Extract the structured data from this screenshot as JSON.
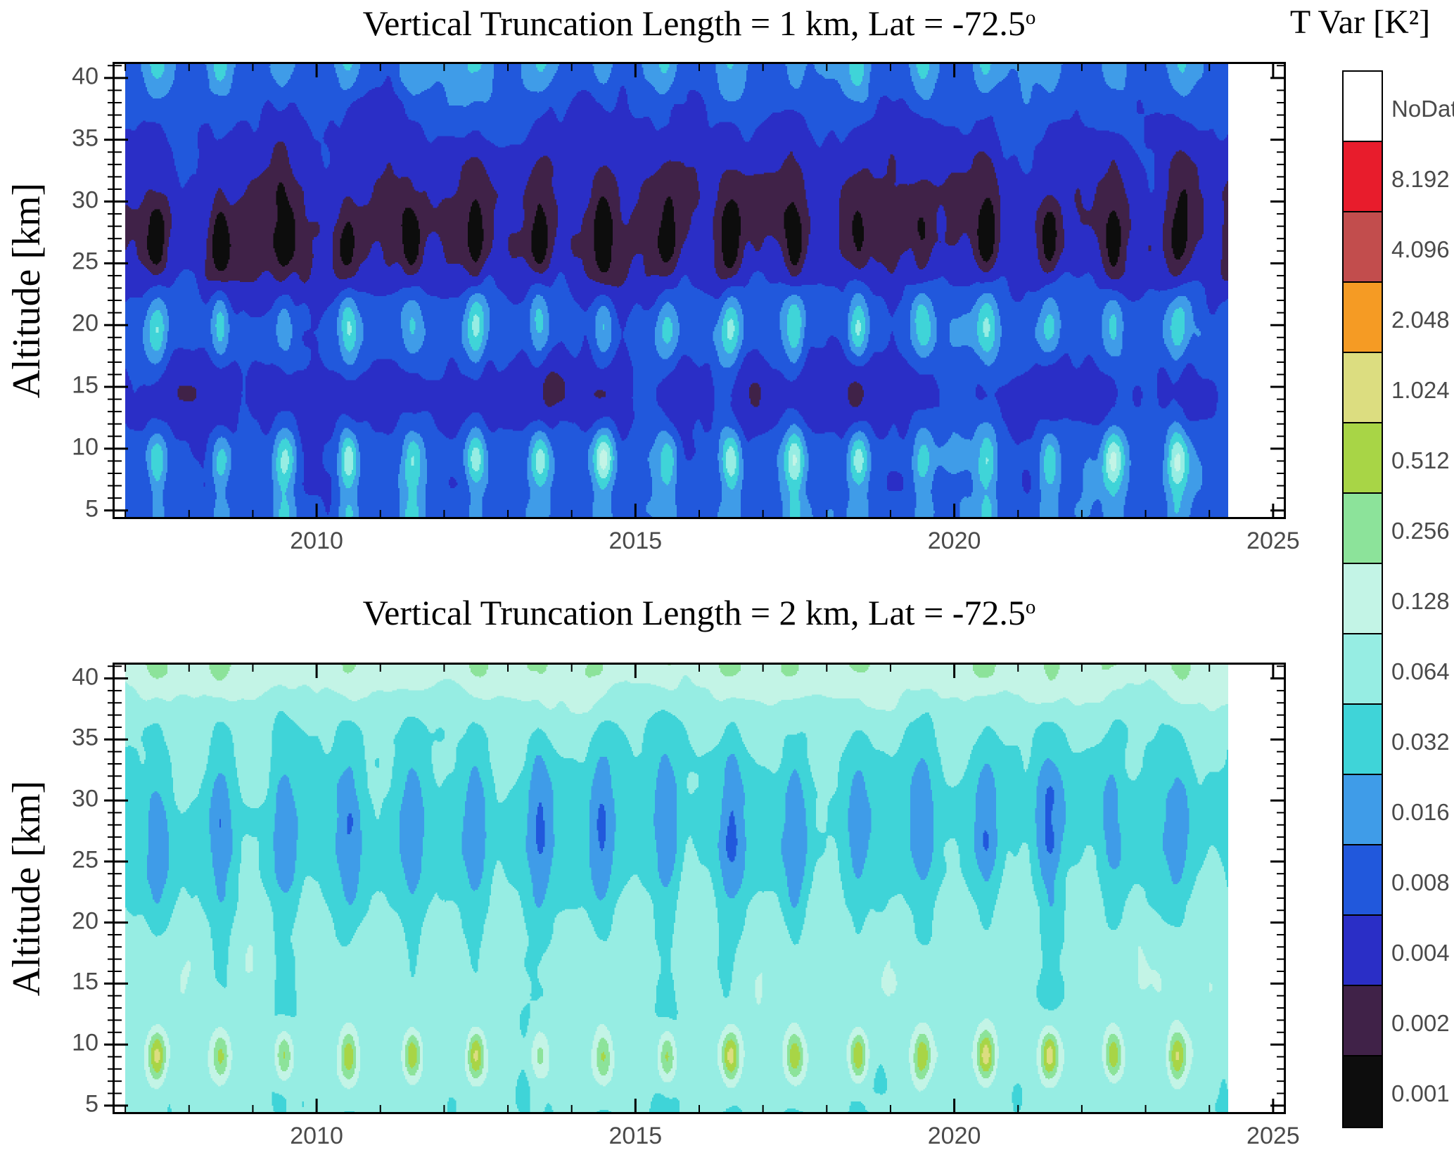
{
  "colorbar": {
    "title": "T Var [K²]",
    "labels": [
      "NoDat",
      "8.192",
      "4.096",
      "2.048",
      "1.024",
      "0.512",
      "0.256",
      "0.128",
      "0.064",
      "0.032",
      "0.016",
      "0.008",
      "0.004",
      "0.002",
      "0.001"
    ],
    "no_data_color": "#ffffff"
  },
  "chart_data": [
    {
      "type": "heatmap",
      "title": "Vertical Truncation Length = 1 km, Lat = -72.5",
      "title_sup": "o",
      "ylabel": "Altitude [km]",
      "x_tick_labels": [
        "2010",
        "2015",
        "2020",
        "2025"
      ],
      "x_tick_years": [
        2010,
        2015,
        2020,
        2025
      ],
      "x_minor_tick_every_years": 1,
      "y_tick_labels": [
        "5",
        "10",
        "15",
        "20",
        "25",
        "30",
        "35",
        "40"
      ],
      "y_tick_values": [
        5,
        10,
        15,
        20,
        25,
        30,
        35,
        40
      ],
      "y_minor_tick_every_km": 1,
      "x_range": [
        2006.8,
        2025.2
      ],
      "y_range": [
        4.3,
        41.3
      ],
      "data_span_years": [
        2007.0,
        2024.3
      ],
      "contour_levels_K2": [
        0.001,
        0.002,
        0.004,
        0.008,
        0.016,
        0.032,
        0.064,
        0.128,
        0.256,
        0.512,
        1.024,
        2.048,
        4.096,
        8.192
      ],
      "palette_low_to_high": [
        "#0d0d0d",
        "#402248",
        "#2a2ec6",
        "#2158dc",
        "#3f9ce8",
        "#3fd4d8",
        "#96ede3",
        "#c3f4e6",
        "#8ce39a",
        "#a8d546",
        "#dcdd80",
        "#f59b24",
        "#c24d4d",
        "#e81c2c"
      ],
      "summary": "Temperature variance vs time (2007-2024) and altitude (5-40 km), 1 km vertical truncation. Background ~0.008 K²; persistent low-variance layer ~23-33 km dropping to 0.002 K² (0.001 K² cores) each austral winter; annual maxima ~0.032-0.128 K² near 9 km and 20 km; ~0.004 K² band near 13-16 km; cyan winter patches near 40 km.",
      "model": {
        "seed": 3,
        "base": 3.35,
        "noiseAmp": 0.8,
        "bands": [
          {
            "c": 28.5,
            "s": 5.0,
            "a": -1.25,
            "sa": -0.85,
            "p": 2
          },
          {
            "c": 26.5,
            "s": 1.9,
            "a": -0.15,
            "sa": -1.35,
            "p": 6
          },
          {
            "c": 9.0,
            "s": 1.7,
            "a": 0.2,
            "sa": 2.9,
            "p": 4
          },
          {
            "c": 20.0,
            "s": 2.1,
            "a": 0.45,
            "sa": 2.2,
            "p": 4
          },
          {
            "c": 14.5,
            "s": 2.3,
            "a": -0.75,
            "sa": -0.2,
            "p": 2
          },
          {
            "c": 41.5,
            "s": 2.3,
            "a": 0.5,
            "sa": 1.5,
            "p": 3
          },
          {
            "c": 4.5,
            "s": 1.3,
            "a": 0.25,
            "sa": 1.1,
            "p": 4
          }
        ]
      }
    },
    {
      "type": "heatmap",
      "title": "Vertical Truncation Length = 2 km, Lat = -72.5",
      "title_sup": "o",
      "ylabel": "Altitude [km]",
      "x_tick_labels": [
        "2010",
        "2015",
        "2020",
        "2025"
      ],
      "x_tick_years": [
        2010,
        2015,
        2020,
        2025
      ],
      "x_minor_tick_every_years": 1,
      "y_tick_labels": [
        "5",
        "10",
        "15",
        "20",
        "25",
        "30",
        "35",
        "40"
      ],
      "y_tick_values": [
        5,
        10,
        15,
        20,
        25,
        30,
        35,
        40
      ],
      "y_minor_tick_every_km": 1,
      "x_range": [
        2006.8,
        2025.2
      ],
      "y_range": [
        4.3,
        41.3
      ],
      "data_span_years": [
        2007.0,
        2024.3
      ],
      "contour_levels_K2": [
        0.001,
        0.002,
        0.004,
        0.008,
        0.016,
        0.032,
        0.064,
        0.128,
        0.256,
        0.512,
        1.024,
        2.048,
        4.096,
        8.192
      ],
      "palette_low_to_high": [
        "#0d0d0d",
        "#402248",
        "#2a2ec6",
        "#2158dc",
        "#3f9ce8",
        "#3fd4d8",
        "#96ede3",
        "#c3f4e6",
        "#8ce39a",
        "#a8d546",
        "#dcdd80",
        "#f59b24",
        "#c24d4d",
        "#e81c2c"
      ],
      "summary": "Same field with 2 km truncation. Background ~0.064 K² (pale cyan) with seasonal 0.032 K² vertical streaks; annual winter minima ~0.016 K² near 24-31 km; strong annual maxima ~0.5-1 K² (yellow-green, pale centers) near 9 km; ~0.128-0.256 K² strip near 40 km.",
      "model": {
        "seed": 11,
        "base": 6.3,
        "noiseAmp": 0.55,
        "bands": [
          {
            "c": 27.5,
            "s": 4.5,
            "a": -0.55,
            "sa": -1.15,
            "p": 2.5
          },
          {
            "c": 9.0,
            "s": 1.5,
            "a": 0.2,
            "sa": 3.4,
            "p": 5
          },
          {
            "c": 41.5,
            "s": 2.6,
            "a": 1.2,
            "sa": 0.9,
            "p": 2
          },
          {
            "c": 25.0,
            "s": 16.0,
            "a": 0,
            "sa": -0.55,
            "p": 2
          },
          {
            "c": 17.0,
            "s": 3.5,
            "a": 0.3,
            "sa": 0.25,
            "p": 2,
            "ph": 0.0
          }
        ]
      }
    }
  ]
}
